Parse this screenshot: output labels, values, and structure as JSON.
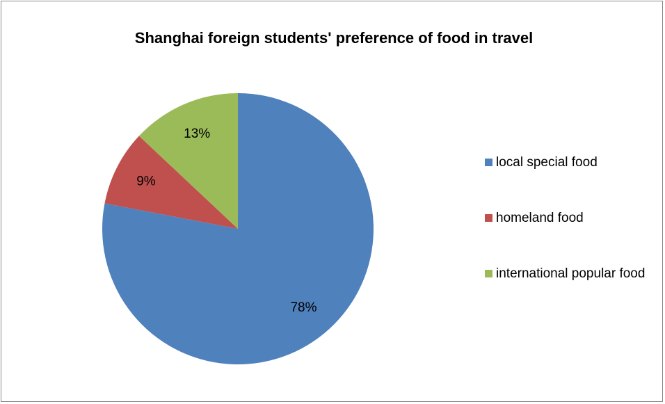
{
  "chart_data": {
    "type": "pie",
    "title": "Shanghai foreign students' preference of food in travel",
    "categories": [
      "local special food",
      "homeland food",
      "international popular food"
    ],
    "values": [
      78,
      9,
      13
    ],
    "value_labels": [
      "78%",
      "9%",
      "13%"
    ],
    "colors": [
      "#4f81bd",
      "#c0504d",
      "#9bbb59"
    ],
    "legend": "right"
  }
}
